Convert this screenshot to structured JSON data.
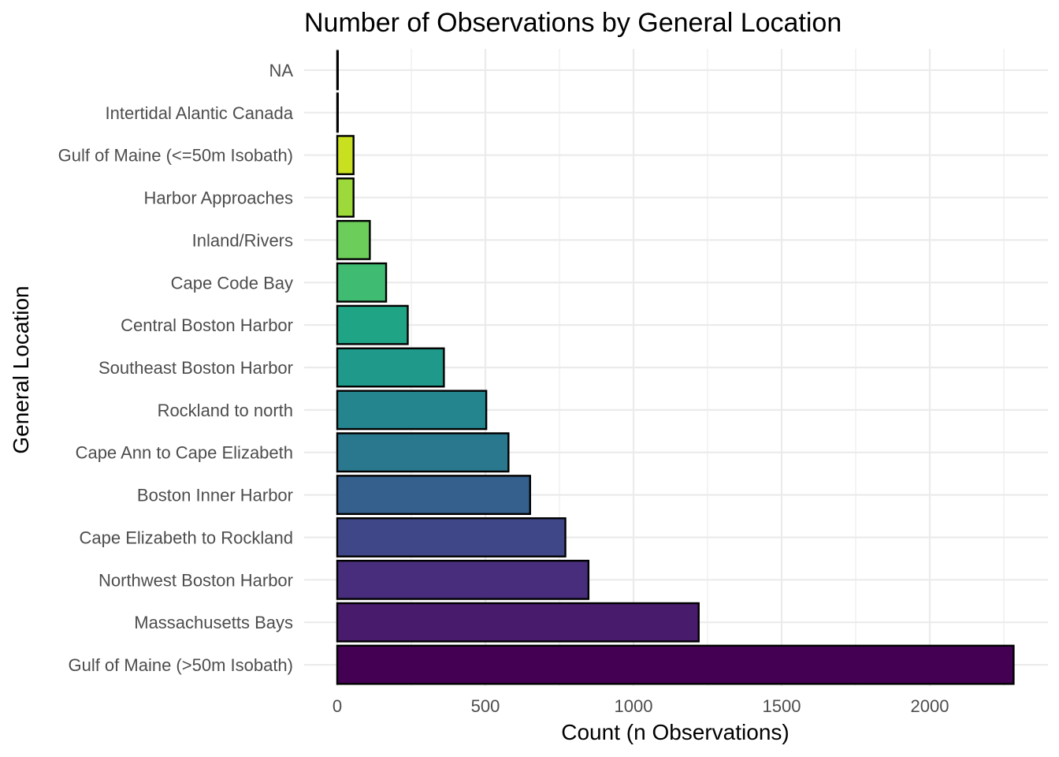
{
  "chart_data": {
    "type": "bar",
    "orientation": "horizontal",
    "title": "Number of Observations by General Location",
    "xlabel": "Count (n Observations)",
    "ylabel": "General Location",
    "xlim": [
      0,
      2300
    ],
    "x_ticks": [
      0,
      500,
      1000,
      1500,
      2000
    ],
    "grid": true,
    "legend": "none",
    "categories": [
      "NA",
      "Intertidal Alantic Canada",
      "Gulf of Maine (<=50m Isobath)",
      "Harbor Approaches",
      "Inland/Rivers",
      "Cape Code Bay",
      "Central Boston Harbor",
      "Southeast Boston Harbor",
      "Rockland to north",
      "Cape Ann to Cape Elizabeth",
      "Boston Inner Harbor",
      "Cape Elizabeth to Rockland",
      "Northwest Boston Harbor",
      "Massachusetts Bays",
      "Gulf of Maine (>50m Isobath)"
    ],
    "values": [
      2,
      2,
      55,
      55,
      110,
      165,
      238,
      360,
      503,
      578,
      651,
      770,
      848,
      1220,
      2283
    ],
    "colors": [
      "#FDE725",
      "#E4E51A",
      "#C8E020",
      "#9DD93B",
      "#6CCD5A",
      "#40BC72",
      "#20A486",
      "#1F998A",
      "#25858E",
      "#2A788E",
      "#355F8D",
      "#3F4788",
      "#472D7B",
      "#481B6D",
      "#440154"
    ],
    "bar_outline": "#000000",
    "grid_color": "#EBEBEB"
  }
}
